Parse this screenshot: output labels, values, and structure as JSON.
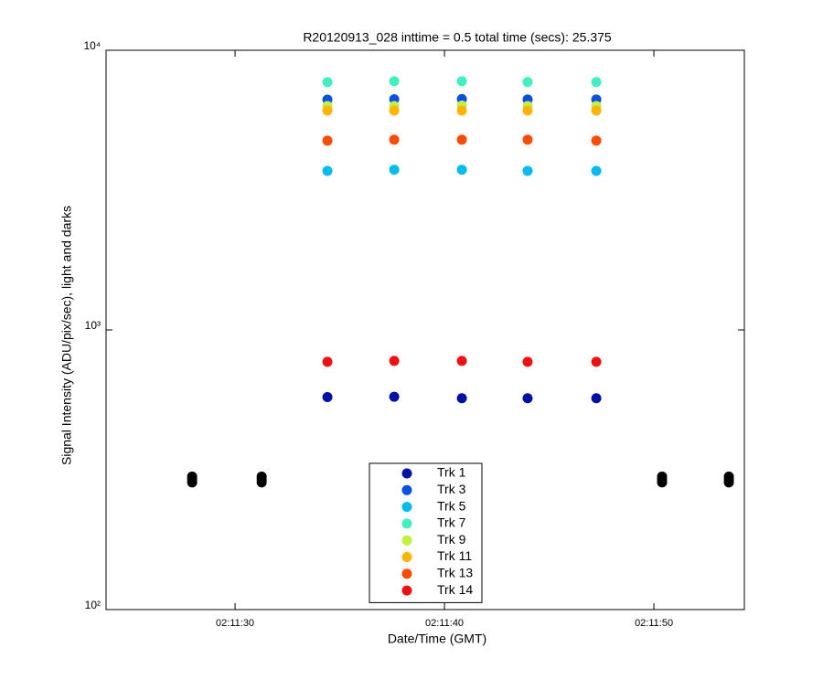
{
  "chart_data": {
    "type": "scatter",
    "title": "R20120913_028 inttime = 0.5 total time (secs): 25.375",
    "x_label": "Date/Time (GMT)",
    "y_label": "Signal Intensity (ADU/pix/sec), light and darks",
    "ylog": true,
    "xlim": [
      23.84,
      54.32
    ],
    "xticks": [
      {
        "value": 30,
        "label": "02:11:30"
      },
      {
        "value": 40,
        "label": "02:11:40"
      },
      {
        "value": 50,
        "label": "02:11:50"
      }
    ],
    "ylim": [
      100,
      10000
    ],
    "yticks": [
      {
        "value": 100,
        "label": "10²"
      },
      {
        "value": 1000,
        "label": "10³"
      },
      {
        "value": 10000,
        "label": "10⁴"
      }
    ],
    "legend": "bottom-center",
    "series": [
      {
        "name": "Trk 1",
        "color": "#0010a8",
        "x": [
          34.41,
          37.6,
          40.83,
          43.97,
          47.25
        ],
        "values": [
          575,
          577,
          570,
          570,
          570
        ]
      },
      {
        "name": "Trk 3",
        "color": "#0a4fe6",
        "x": [
          34.41,
          37.6,
          40.83,
          43.97,
          47.25
        ],
        "values": [
          6660,
          6680,
          6690,
          6670,
          6670
        ]
      },
      {
        "name": "Trk 5",
        "color": "#00bcf2",
        "x": [
          34.41,
          37.6,
          40.83,
          43.97,
          47.25
        ],
        "values": [
          3705,
          3740,
          3740,
          3705,
          3705
        ]
      },
      {
        "name": "Trk 7",
        "color": "#40f0c0",
        "x": [
          34.41,
          37.6,
          40.83,
          43.97,
          47.25
        ],
        "values": [
          7690,
          7750,
          7750,
          7700,
          7700
        ]
      },
      {
        "name": "Trk 9",
        "color": "#c0f040",
        "x": [
          34.41,
          37.6,
          40.83,
          43.97,
          47.25
        ],
        "values": [
          6320,
          6320,
          6340,
          6320,
          6320
        ]
      },
      {
        "name": "Trk 11",
        "color": "#ffb400",
        "x": [
          34.41,
          37.6,
          40.83,
          43.97,
          47.25
        ],
        "values": [
          6085,
          6085,
          6085,
          6085,
          6085
        ]
      },
      {
        "name": "Trk 13",
        "color": "#ff4c00",
        "x": [
          34.41,
          37.6,
          40.83,
          43.97,
          47.25
        ],
        "values": [
          4750,
          4790,
          4790,
          4790,
          4750
        ]
      },
      {
        "name": "Trk 14",
        "color": "#f01010",
        "x": [
          34.41,
          37.6,
          40.83,
          43.97,
          47.25
        ],
        "values": [
          769,
          775,
          775,
          769,
          769
        ]
      },
      {
        "color": "#000000",
        "x": [
          27.95,
          27.95,
          27.95,
          31.27,
          31.27,
          31.27,
          50.39,
          50.39,
          50.39,
          53.58,
          53.58,
          53.58
        ],
        "values": [
          285,
          292,
          299,
          285,
          292,
          299,
          285,
          292,
          299,
          285,
          292,
          299
        ]
      }
    ]
  }
}
